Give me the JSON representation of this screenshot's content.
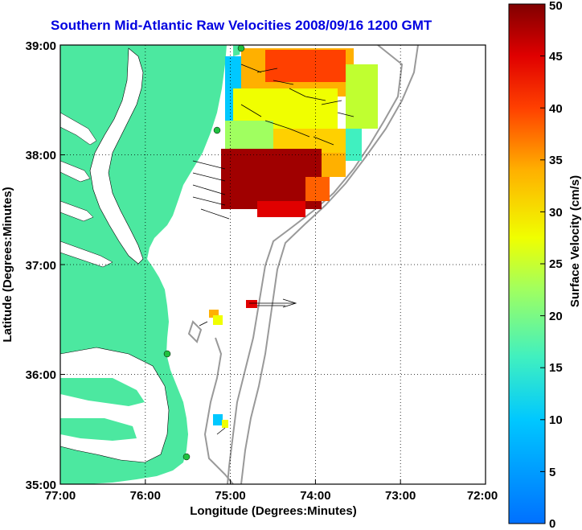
{
  "title": "Southern Mid-Atlantic Raw Velocities 2008/09/16 1200 GMT",
  "map": {
    "xlabel": "Longitude (Degrees:Minutes)",
    "ylabel": "Latitude (Degrees:Minutes)",
    "x_ticks": [
      "77:00",
      "76:00",
      "75:00",
      "74:00",
      "73:00",
      "72:00"
    ],
    "y_ticks": [
      "39:00",
      "38:00",
      "37:00",
      "36:00",
      "35:00"
    ],
    "lon_range": [
      -77,
      -72
    ],
    "lat_range": [
      35,
      39
    ],
    "land_color": "#4ce8a0",
    "grid": "dotted"
  },
  "colorbar": {
    "label": "Surface Velocity (cm/s)",
    "ticks": [
      "50",
      "45",
      "40",
      "35",
      "30",
      "25",
      "20",
      "15",
      "10",
      "5",
      "0"
    ],
    "range": [
      0,
      50
    ],
    "colormap": "jet"
  }
}
